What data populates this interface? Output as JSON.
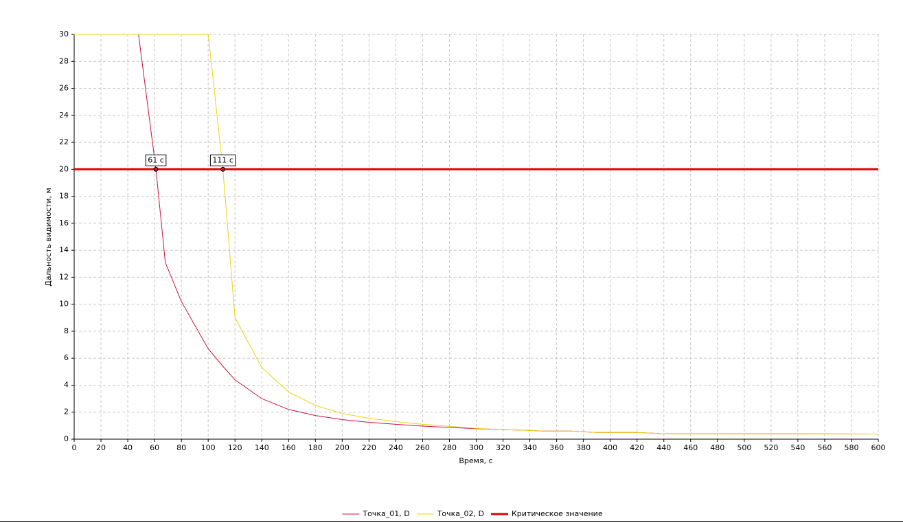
{
  "chart_data": {
    "type": "line",
    "xlabel": "Время, с",
    "ylabel": "Дальность видимости, м",
    "x": [
      0,
      48,
      61,
      68,
      80,
      100,
      111,
      120,
      140,
      160,
      180,
      200,
      220,
      240,
      260,
      280,
      300,
      320,
      340,
      350,
      370,
      380,
      390,
      420,
      440,
      460,
      600
    ],
    "series": [
      {
        "name": "Точка_01, D",
        "color": "#c8143c",
        "width": 1,
        "values": [
          30,
          30,
          20,
          13.1,
          10.2,
          6.7,
          5.4,
          4.4,
          3.0,
          2.2,
          1.75,
          1.45,
          1.25,
          1.1,
          0.97,
          0.87,
          0.78,
          0.7,
          0.65,
          0.6,
          0.6,
          0.55,
          0.5,
          0.5,
          0.4,
          0.4,
          0.38
        ]
      },
      {
        "name": "Точка_02, D",
        "color": "#f0d010",
        "width": 1,
        "values": [
          30,
          30,
          30,
          30,
          30,
          30,
          20,
          9.0,
          5.3,
          3.5,
          2.5,
          1.9,
          1.55,
          1.3,
          1.1,
          0.95,
          0.8,
          0.7,
          0.65,
          0.6,
          0.6,
          0.55,
          0.5,
          0.5,
          0.4,
          0.4,
          0.38
        ]
      },
      {
        "name": "Критическое значение",
        "color": "#e00000",
        "width": 3,
        "values": [
          20,
          20,
          20,
          20,
          20,
          20,
          20,
          20,
          20,
          20,
          20,
          20,
          20,
          20,
          20,
          20,
          20,
          20,
          20,
          20,
          20,
          20,
          20,
          20,
          20,
          20,
          20
        ]
      }
    ],
    "annotations": [
      {
        "text": "61 с",
        "x": 61,
        "y": 20
      },
      {
        "text": "111 с",
        "x": 111,
        "y": 20
      }
    ],
    "xlim": [
      0,
      600
    ],
    "ylim": [
      0,
      30
    ],
    "xticks": [
      0,
      20,
      40,
      60,
      80,
      100,
      120,
      140,
      160,
      180,
      200,
      220,
      240,
      260,
      280,
      300,
      320,
      340,
      360,
      380,
      400,
      420,
      440,
      460,
      480,
      500,
      520,
      540,
      560,
      580,
      600
    ],
    "yticks": [
      0,
      2,
      4,
      6,
      8,
      10,
      12,
      14,
      16,
      18,
      20,
      22,
      24,
      26,
      28,
      30
    ],
    "grid": true
  }
}
